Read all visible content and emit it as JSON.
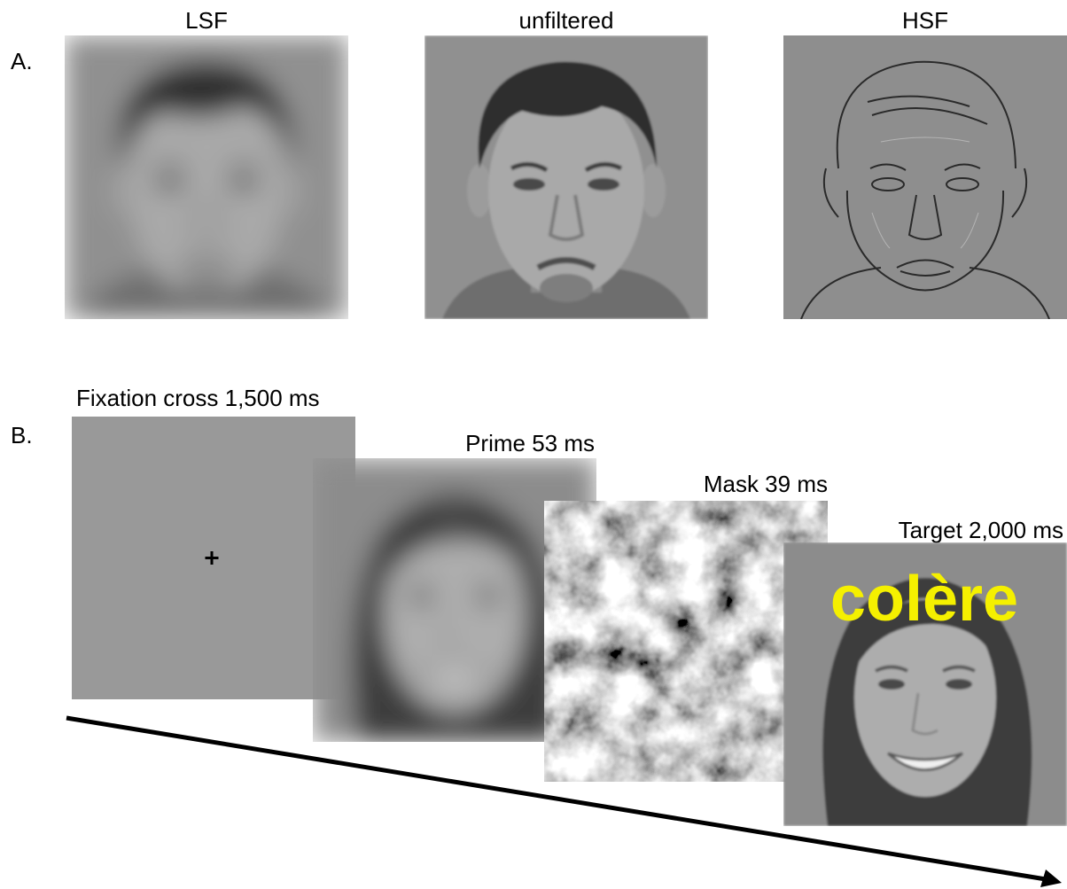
{
  "panel_a": {
    "label": "A.",
    "images": [
      {
        "label": "LSF"
      },
      {
        "label": "unfiltered"
      },
      {
        "label": "HSF"
      }
    ]
  },
  "panel_b": {
    "label": "B.",
    "steps": [
      {
        "label": "Fixation cross 1,500 ms"
      },
      {
        "label": "Prime 53 ms"
      },
      {
        "label": "Mask 39 ms"
      },
      {
        "label": "Target 2,000 ms"
      }
    ],
    "target_word": "colère"
  }
}
